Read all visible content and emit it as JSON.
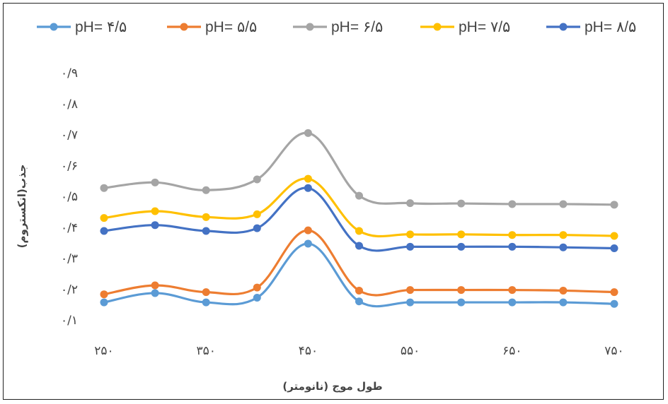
{
  "chart_data": {
    "type": "line",
    "xlabel": "(نانومتر) طول موج",
    "ylabel": "جذب(انکستروم)",
    "x": [
      250,
      300,
      350,
      400,
      450,
      500,
      550,
      600,
      650,
      700,
      750
    ],
    "xlim": [
      250,
      750
    ],
    "ylim": [
      0.1,
      0.9
    ],
    "x_tick_labels": [
      "۲۵۰",
      "۳۵۰",
      "۴۵۰",
      "۵۵۰",
      "۶۵۰",
      "۷۵۰"
    ],
    "y_tick_labels": [
      "۰/۱",
      "۰/۲",
      "۰/۳",
      "۰/۴",
      "۰/۵",
      "۰/۶",
      "۰/۷",
      "۰/۸",
      "۰/۹"
    ],
    "grid": false,
    "legend": "top",
    "series": [
      {
        "name": "pH= ۴/۵",
        "color": "#5B9BD5",
        "values": [
          0.157,
          0.187,
          0.157,
          0.172,
          0.347,
          0.16,
          0.157,
          0.157,
          0.157,
          0.157,
          0.152
        ]
      },
      {
        "name": "pH= ۵/۵",
        "color": "#ED7D31",
        "values": [
          0.183,
          0.212,
          0.19,
          0.205,
          0.39,
          0.195,
          0.197,
          0.197,
          0.197,
          0.195,
          0.19
        ]
      },
      {
        "name": "pH= ۶/۵",
        "color": "#A5A5A5",
        "values": [
          0.527,
          0.545,
          0.52,
          0.555,
          0.705,
          0.502,
          0.478,
          0.477,
          0.475,
          0.475,
          0.473
        ]
      },
      {
        "name": "pH=  ۷/۵",
        "color": "#FFC000",
        "values": [
          0.43,
          0.452,
          0.433,
          0.442,
          0.557,
          0.388,
          0.377,
          0.377,
          0.375,
          0.375,
          0.372
        ]
      },
      {
        "name": "pH=  ۸/۵",
        "color": "#4472C4",
        "values": [
          0.388,
          0.407,
          0.388,
          0.397,
          0.527,
          0.34,
          0.337,
          0.337,
          0.337,
          0.335,
          0.332
        ]
      }
    ]
  }
}
